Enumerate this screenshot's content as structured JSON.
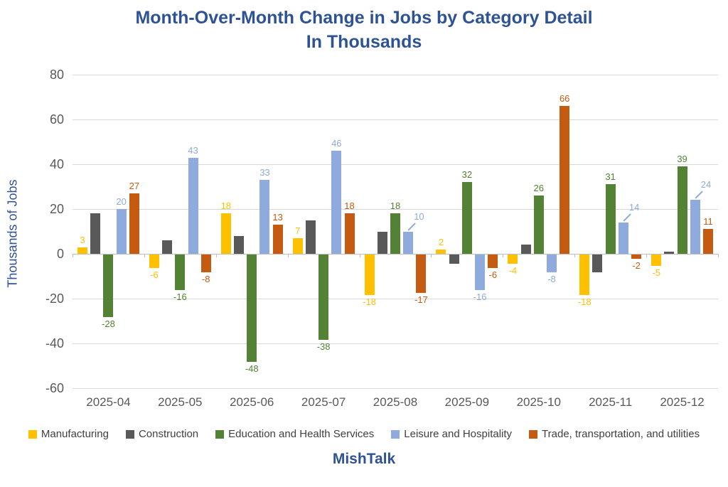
{
  "title": {
    "line1": "Month-Over-Month Change in Jobs by Category Detail",
    "line2": "In Thousands"
  },
  "footer": "MishTalk",
  "y_axis": {
    "label": "Thousands of Jobs",
    "ticks": [
      80,
      60,
      40,
      20,
      0,
      -20,
      -40,
      -60
    ]
  },
  "colors": {
    "title_text": "#2E5395",
    "axis_text": "#595959",
    "gridline": "#D9D9D9",
    "zero_line": "#BFBFBF"
  },
  "chart_data": {
    "type": "bar",
    "title": "Month-Over-Month Change in Jobs by Category Detail In Thousands",
    "xlabel": "",
    "ylabel": "Thousands of Jobs",
    "ylim": [
      -60,
      80
    ],
    "grid": true,
    "gridline_step": 20,
    "legend_position": "bottom",
    "categories": [
      "2025-04",
      "2025-05",
      "2025-06",
      "2025-07",
      "2025-08",
      "2025-09",
      "2025-10",
      "2025-11",
      "2025-12"
    ],
    "series": [
      {
        "name": "Manufacturing",
        "color": "#FFC000",
        "labels_shown": true,
        "values": [
          3,
          -6,
          18,
          7,
          -18,
          2,
          -4,
          -18,
          -5
        ]
      },
      {
        "name": "Construction",
        "color": "#595959",
        "labels_shown": false,
        "values": [
          18,
          6,
          8,
          15,
          10,
          -4,
          4,
          -8,
          1
        ]
      },
      {
        "name": "Education and Health Services",
        "color": "#548235",
        "labels_shown": true,
        "values": [
          -28,
          -16,
          -48,
          -38,
          18,
          32,
          26,
          31,
          39
        ]
      },
      {
        "name": "Leisure and Hospitality",
        "color": "#8FAADC",
        "labels_shown": true,
        "values": [
          20,
          43,
          33,
          46,
          10,
          -16,
          -8,
          14,
          24
        ]
      },
      {
        "name": "Trade, transportation, and utilities",
        "color": "#C55A11",
        "labels_shown": true,
        "values": [
          27,
          -8,
          13,
          18,
          -17,
          -6,
          66,
          -2,
          11
        ]
      }
    ],
    "callout_labels": [
      {
        "category": "2025-08",
        "series": "Leisure and Hospitality"
      },
      {
        "category": "2025-11",
        "series": "Leisure and Hospitality"
      },
      {
        "category": "2025-12",
        "series": "Leisure and Hospitality"
      }
    ]
  }
}
